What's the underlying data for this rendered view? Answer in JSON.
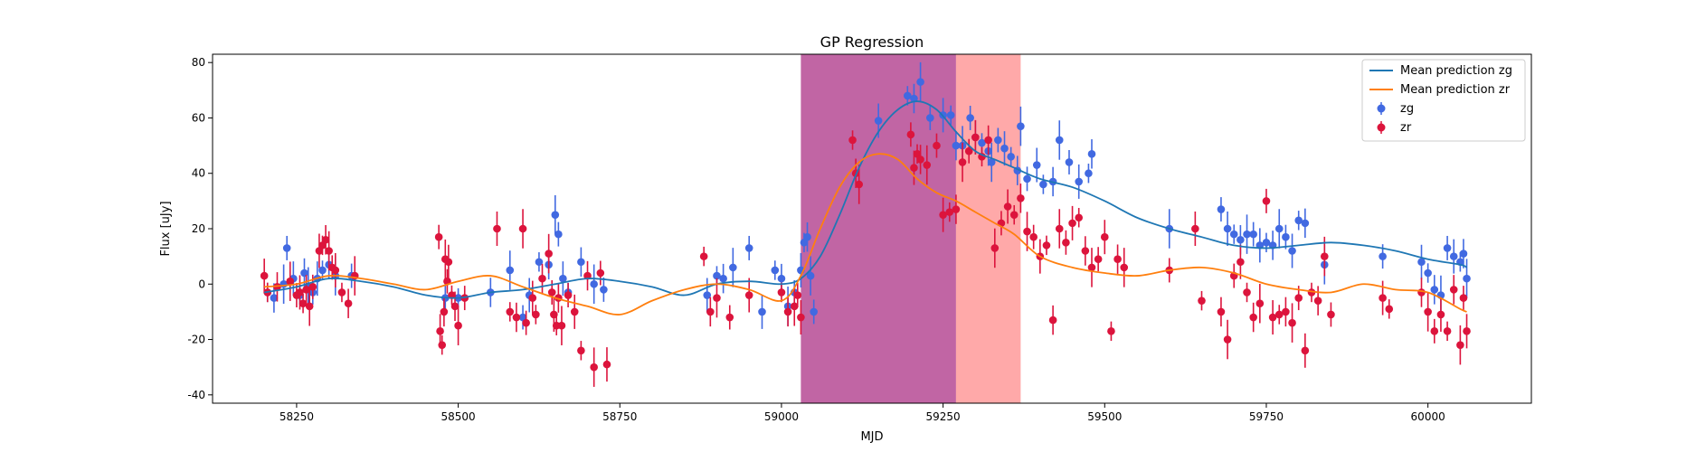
{
  "chart_data": {
    "type": "scatter",
    "title": "GP Regression",
    "xlabel": "MJD",
    "ylabel": "Flux [uJy]",
    "xlim": [
      58120,
      60160
    ],
    "ylim": [
      -43,
      83
    ],
    "xticks": [
      58250,
      58500,
      58750,
      59000,
      59250,
      59500,
      59750,
      60000
    ],
    "yticks": [
      -40,
      -20,
      0,
      20,
      40,
      60,
      80
    ],
    "grid": false,
    "legend_position": "top-right",
    "colors": {
      "zg_line": "#1f77b4",
      "zr_line": "#ff7f0e",
      "zg_points": "#4169e1",
      "zr_points": "#dc143c"
    },
    "spans": [
      {
        "x0": 59030,
        "x1": 59270,
        "color": "#b03a8a"
      },
      {
        "x0": 59270,
        "x1": 59370,
        "color": "#ff8888"
      }
    ],
    "lines": [
      {
        "name": "Mean prediction zg",
        "color": "#1f77b4",
        "x": [
          58200,
          58250,
          58300,
          58350,
          58400,
          58450,
          58500,
          58550,
          58600,
          58650,
          58700,
          58750,
          58800,
          58850,
          58900,
          58950,
          59000,
          59030,
          59060,
          59090,
          59120,
          59150,
          59180,
          59210,
          59240,
          59270,
          59300,
          59330,
          59360,
          59400,
          59450,
          59500,
          59550,
          59600,
          59650,
          59700,
          59750,
          59800,
          59850,
          59900,
          59950,
          60000,
          60050,
          60060
        ],
        "y": [
          -3,
          -1,
          2,
          1,
          -1,
          -4,
          -5,
          -3,
          -2,
          0,
          2,
          1,
          -1,
          -4,
          0,
          1,
          0,
          2,
          10,
          25,
          42,
          55,
          63,
          66,
          63,
          55,
          48,
          45,
          42,
          38,
          35,
          30,
          24,
          20,
          17,
          14,
          13,
          14,
          15,
          14,
          12,
          9,
          7,
          6
        ]
      },
      {
        "name": "Mean prediction zr",
        "color": "#ff7f0e",
        "x": [
          58200,
          58250,
          58300,
          58350,
          58400,
          58450,
          58500,
          58550,
          58600,
          58650,
          58700,
          58750,
          58800,
          58850,
          58900,
          58950,
          59000,
          59030,
          59060,
          59090,
          59120,
          59150,
          59180,
          59210,
          59240,
          59270,
          59300,
          59330,
          59360,
          59400,
          59450,
          59500,
          59550,
          59600,
          59650,
          59700,
          59750,
          59800,
          59850,
          59900,
          59950,
          60000,
          60050,
          60060
        ],
        "y": [
          -1,
          0,
          3,
          2,
          0,
          -2,
          1,
          3,
          -1,
          -5,
          -8,
          -11,
          -6,
          -2,
          0,
          -2,
          -6,
          3,
          20,
          35,
          44,
          47,
          45,
          38,
          33,
          30,
          26,
          22,
          18,
          10,
          6,
          4,
          3,
          5,
          6,
          4,
          0,
          -2,
          -3,
          0,
          -2,
          -3,
          -9,
          -10
        ]
      }
    ],
    "series": [
      {
        "name": "zg",
        "color": "#4169e1",
        "points": [
          [
            58205,
            -3
          ],
          [
            58215,
            -5
          ],
          [
            58230,
            0
          ],
          [
            58235,
            13
          ],
          [
            58245,
            2
          ],
          [
            58255,
            -4
          ],
          [
            58262,
            4
          ],
          [
            58268,
            -1
          ],
          [
            58275,
            -3
          ],
          [
            58282,
            2
          ],
          [
            58290,
            5
          ],
          [
            58300,
            7
          ],
          [
            58310,
            3
          ],
          [
            58335,
            3
          ],
          [
            58480,
            -5
          ],
          [
            58500,
            -5
          ],
          [
            58550,
            -3
          ],
          [
            58580,
            5
          ],
          [
            58600,
            -12
          ],
          [
            58610,
            -4
          ],
          [
            58625,
            8
          ],
          [
            58640,
            7
          ],
          [
            58650,
            25
          ],
          [
            58655,
            18
          ],
          [
            58662,
            2
          ],
          [
            58670,
            -3
          ],
          [
            58690,
            8
          ],
          [
            58710,
            0
          ],
          [
            58725,
            -2
          ],
          [
            58885,
            -4
          ],
          [
            58900,
            3
          ],
          [
            58910,
            2
          ],
          [
            58925,
            6
          ],
          [
            58950,
            13
          ],
          [
            58970,
            -10
          ],
          [
            58990,
            5
          ],
          [
            59000,
            2
          ],
          [
            59010,
            -8
          ],
          [
            59020,
            -3
          ],
          [
            59030,
            5
          ],
          [
            59035,
            15
          ],
          [
            59040,
            17
          ],
          [
            59045,
            3
          ],
          [
            59050,
            -10
          ],
          [
            59150,
            59
          ],
          [
            59195,
            68
          ],
          [
            59205,
            67
          ],
          [
            59215,
            73
          ],
          [
            59230,
            60
          ],
          [
            59250,
            61
          ],
          [
            59262,
            61
          ],
          [
            59270,
            50
          ],
          [
            59280,
            50
          ],
          [
            59292,
            60
          ],
          [
            59300,
            53
          ],
          [
            59310,
            51
          ],
          [
            59320,
            48
          ],
          [
            59325,
            44
          ],
          [
            59335,
            52
          ],
          [
            59345,
            49
          ],
          [
            59355,
            46
          ],
          [
            59365,
            41
          ],
          [
            59370,
            57
          ],
          [
            59380,
            38
          ],
          [
            59395,
            43
          ],
          [
            59405,
            36
          ],
          [
            59420,
            37
          ],
          [
            59430,
            52
          ],
          [
            59445,
            44
          ],
          [
            59460,
            37
          ],
          [
            59475,
            40
          ],
          [
            59480,
            47
          ],
          [
            59600,
            20
          ],
          [
            59680,
            27
          ],
          [
            59690,
            20
          ],
          [
            59700,
            18
          ],
          [
            59710,
            16
          ],
          [
            59720,
            18
          ],
          [
            59730,
            18
          ],
          [
            59740,
            14
          ],
          [
            59750,
            15
          ],
          [
            59760,
            14
          ],
          [
            59770,
            20
          ],
          [
            59780,
            17
          ],
          [
            59790,
            12
          ],
          [
            59800,
            23
          ],
          [
            59810,
            22
          ],
          [
            59840,
            7
          ],
          [
            59930,
            10
          ],
          [
            59990,
            8
          ],
          [
            60000,
            4
          ],
          [
            60010,
            -2
          ],
          [
            60020,
            -4
          ],
          [
            60030,
            13
          ],
          [
            60040,
            10
          ],
          [
            60050,
            8
          ],
          [
            60055,
            11
          ],
          [
            60060,
            2
          ]
        ]
      },
      {
        "name": "zr",
        "color": "#dc143c",
        "points": [
          [
            58200,
            3
          ],
          [
            58205,
            -3
          ],
          [
            58220,
            -1
          ],
          [
            58240,
            1
          ],
          [
            58250,
            -4
          ],
          [
            58255,
            -3
          ],
          [
            58260,
            -7
          ],
          [
            58265,
            -2
          ],
          [
            58270,
            -8
          ],
          [
            58275,
            -1
          ],
          [
            58285,
            12
          ],
          [
            58290,
            14
          ],
          [
            58295,
            16
          ],
          [
            58300,
            12
          ],
          [
            58305,
            6
          ],
          [
            58310,
            5
          ],
          [
            58320,
            -3
          ],
          [
            58330,
            -7
          ],
          [
            58340,
            3
          ],
          [
            58470,
            17
          ],
          [
            58472,
            -17
          ],
          [
            58475,
            -22
          ],
          [
            58478,
            -10
          ],
          [
            58480,
            9
          ],
          [
            58483,
            1
          ],
          [
            58485,
            8
          ],
          [
            58490,
            -4
          ],
          [
            58495,
            -8
          ],
          [
            58500,
            -15
          ],
          [
            58510,
            -5
          ],
          [
            58560,
            20
          ],
          [
            58580,
            -10
          ],
          [
            58590,
            -12
          ],
          [
            58600,
            20
          ],
          [
            58605,
            -14
          ],
          [
            58615,
            -5
          ],
          [
            58620,
            -11
          ],
          [
            58630,
            2
          ],
          [
            58640,
            11
          ],
          [
            58645,
            -3
          ],
          [
            58648,
            -11
          ],
          [
            58652,
            -15
          ],
          [
            58655,
            -5
          ],
          [
            58660,
            -15
          ],
          [
            58670,
            -4
          ],
          [
            58680,
            -10
          ],
          [
            58690,
            -24
          ],
          [
            58700,
            3
          ],
          [
            58710,
            -30
          ],
          [
            58720,
            4
          ],
          [
            58730,
            -29
          ],
          [
            58880,
            10
          ],
          [
            58890,
            -10
          ],
          [
            58900,
            -5
          ],
          [
            58920,
            -12
          ],
          [
            58950,
            -4
          ],
          [
            59000,
            -3
          ],
          [
            59010,
            -10
          ],
          [
            59020,
            -8
          ],
          [
            59025,
            -4
          ],
          [
            59030,
            -12
          ],
          [
            59110,
            52
          ],
          [
            59115,
            40
          ],
          [
            59120,
            36
          ],
          [
            59200,
            54
          ],
          [
            59205,
            42
          ],
          [
            59210,
            47
          ],
          [
            59215,
            45
          ],
          [
            59225,
            43
          ],
          [
            59240,
            50
          ],
          [
            59250,
            25
          ],
          [
            59260,
            26
          ],
          [
            59270,
            27
          ],
          [
            59280,
            44
          ],
          [
            59290,
            48
          ],
          [
            59300,
            53
          ],
          [
            59310,
            46
          ],
          [
            59320,
            52
          ],
          [
            59330,
            13
          ],
          [
            59340,
            22
          ],
          [
            59350,
            28
          ],
          [
            59360,
            25
          ],
          [
            59370,
            31
          ],
          [
            59380,
            19
          ],
          [
            59390,
            17
          ],
          [
            59400,
            10
          ],
          [
            59410,
            14
          ],
          [
            59420,
            -13
          ],
          [
            59430,
            20
          ],
          [
            59440,
            15
          ],
          [
            59450,
            22
          ],
          [
            59460,
            24
          ],
          [
            59470,
            12
          ],
          [
            59480,
            6
          ],
          [
            59490,
            9
          ],
          [
            59500,
            17
          ],
          [
            59510,
            -17
          ],
          [
            59520,
            9
          ],
          [
            59530,
            6
          ],
          [
            59600,
            5
          ],
          [
            59640,
            20
          ],
          [
            59650,
            -6
          ],
          [
            59680,
            -10
          ],
          [
            59690,
            -20
          ],
          [
            59700,
            3
          ],
          [
            59710,
            8
          ],
          [
            59720,
            -3
          ],
          [
            59730,
            -12
          ],
          [
            59740,
            -7
          ],
          [
            59750,
            30
          ],
          [
            59760,
            -12
          ],
          [
            59770,
            -11
          ],
          [
            59780,
            -10
          ],
          [
            59790,
            -14
          ],
          [
            59800,
            -5
          ],
          [
            59810,
            -24
          ],
          [
            59820,
            -3
          ],
          [
            59830,
            -6
          ],
          [
            59840,
            10
          ],
          [
            59850,
            -11
          ],
          [
            59930,
            -5
          ],
          [
            59940,
            -9
          ],
          [
            59990,
            -3
          ],
          [
            60000,
            -10
          ],
          [
            60010,
            -17
          ],
          [
            60020,
            -11
          ],
          [
            60030,
            -17
          ],
          [
            60040,
            -2
          ],
          [
            60050,
            -22
          ],
          [
            60055,
            -5
          ],
          [
            60060,
            -17
          ]
        ]
      }
    ]
  }
}
